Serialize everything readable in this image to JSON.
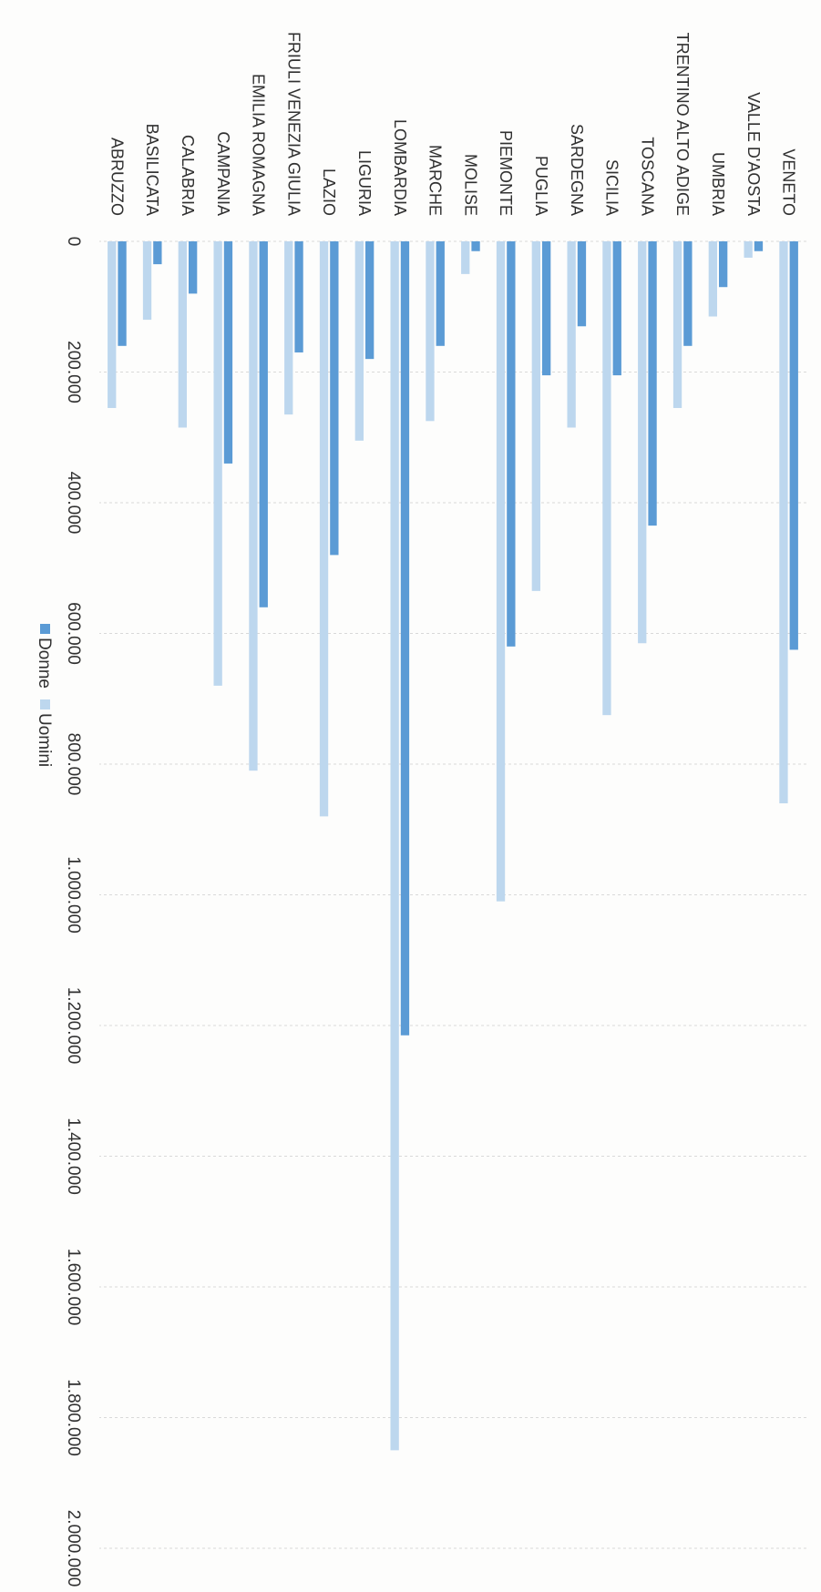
{
  "chart_data": {
    "type": "bar",
    "orientation": "horizontal",
    "rotation": "page rotated 90deg clockwise",
    "categories": [
      "ABRUZZO",
      "BASILICATA",
      "CALABRIA",
      "CAMPANIA",
      "EMILIA ROMAGNA",
      "FRIULI VENEZIA GIULIA",
      "LAZIO",
      "LIGURIA",
      "LOMBARDIA",
      "MARCHE",
      "MOLISE",
      "PIEMONTE",
      "PUGLIA",
      "SARDEGNA",
      "SICILIA",
      "TOSCANA",
      "TRENTINO ALTO ADIGE",
      "UMBRIA",
      "VALLE D'AOSTA",
      "VENETO"
    ],
    "series": [
      {
        "name": "Donne",
        "color": "#5b9bd5",
        "values": [
          160000,
          35000,
          80000,
          340000,
          560000,
          170000,
          480000,
          180000,
          1215000,
          160000,
          15000,
          620000,
          205000,
          130000,
          205000,
          435000,
          160000,
          70000,
          15000,
          625000
        ]
      },
      {
        "name": "Uomini",
        "color": "#bdd7ee",
        "values": [
          255000,
          120000,
          285000,
          680000,
          810000,
          265000,
          880000,
          305000,
          1850000,
          275000,
          50000,
          1010000,
          535000,
          285000,
          725000,
          615000,
          255000,
          115000,
          25000,
          860000
        ]
      }
    ],
    "xlim": [
      0,
      2000000
    ],
    "ticks": [
      "0",
      "200.000",
      "400.000",
      "600.000",
      "800.000",
      "1.000.000",
      "1.200.000",
      "1.400.000",
      "1.600.000",
      "1.800.000",
      "2.000.000"
    ],
    "grid": true,
    "legend": "bottom"
  }
}
